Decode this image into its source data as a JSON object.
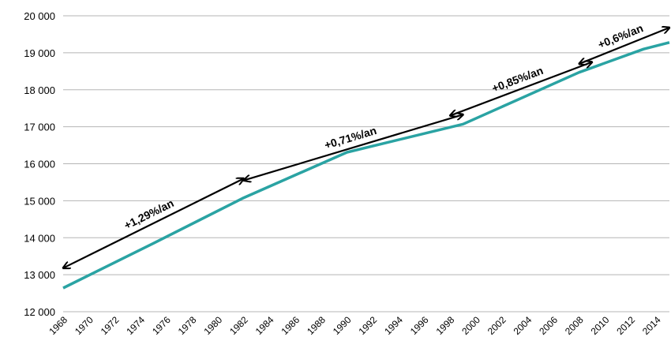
{
  "chart_data": {
    "type": "line",
    "title": "",
    "xlabel": "",
    "ylabel": "",
    "xlim": [
      1968,
      2015
    ],
    "ylim": [
      12000,
      20000
    ],
    "grid": "horizontal",
    "x_tick_labels": [
      "1968",
      "1970",
      "1972",
      "1974",
      "1976",
      "1978",
      "1980",
      "1982",
      "1984",
      "1986",
      "1988",
      "1990",
      "1992",
      "1994",
      "1996",
      "1998",
      "2000",
      "2002",
      "2004",
      "2006",
      "2008",
      "2010",
      "2012",
      "2014"
    ],
    "y_tick_labels": [
      "12 000",
      "13 000",
      "14 000",
      "15 000",
      "16 000",
      "17 000",
      "18 000",
      "19 000",
      "20 000"
    ],
    "y_tick_values": [
      12000,
      13000,
      14000,
      15000,
      16000,
      17000,
      18000,
      19000,
      20000
    ],
    "series": [
      {
        "color": "#2aa3a3",
        "x": [
          1968,
          1975,
          1982,
          1990,
          1999,
          2008,
          2013,
          2015
        ],
        "y": [
          12640,
          13850,
          15080,
          16310,
          17070,
          18470,
          19100,
          19280
        ]
      }
    ],
    "annotations": [
      {
        "text": "+1,29%/an",
        "x1": 1968,
        "y1": 13180,
        "x2": 1982,
        "y2": 15600,
        "color": "#000000"
      },
      {
        "text": "+0,71%/an",
        "x1": 1982,
        "y1": 15550,
        "x2": 1999,
        "y2": 17330,
        "color": "#000000"
      },
      {
        "text": "+0,85%/an",
        "x1": 1998,
        "y1": 17300,
        "x2": 2009,
        "y2": 18750,
        "color": "#000000"
      },
      {
        "text": "+0,6%/an",
        "x1": 2008,
        "y1": 18700,
        "x2": 2015,
        "y2": 19680,
        "color": "#000000"
      }
    ]
  }
}
